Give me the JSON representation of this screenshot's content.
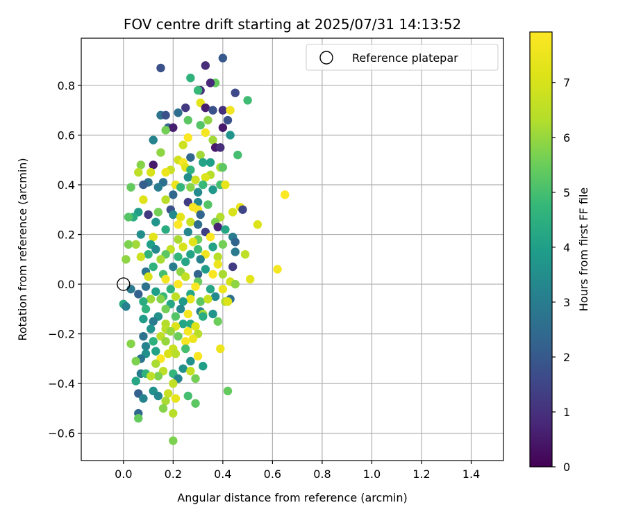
{
  "chart_data": {
    "type": "scatter",
    "title": "FOV centre drift starting at 2025/07/31 14:13:52",
    "xlabel": "Angular distance from reference (arcmin)",
    "ylabel": "Rotation from reference (arcmin)",
    "xlim": [
      -0.17,
      1.53
    ],
    "ylim": [
      -0.71,
      0.99
    ],
    "xticks": [
      0.0,
      0.2,
      0.4,
      0.6,
      0.8,
      1.0,
      1.2,
      1.4
    ],
    "xtick_labels": [
      "0.0",
      "0.2",
      "0.4",
      "0.6",
      "0.8",
      "1.0",
      "1.2",
      "1.4"
    ],
    "yticks": [
      -0.6,
      -0.4,
      -0.2,
      0.0,
      0.2,
      0.4,
      0.6,
      0.8
    ],
    "ytick_labels": [
      "−0.6",
      "−0.4",
      "−0.2",
      "0.0",
      "0.2",
      "0.4",
      "0.6",
      "0.8"
    ],
    "grid": true,
    "legend": {
      "position": "top-right",
      "entries": [
        "Reference platepar"
      ]
    },
    "reference_point": {
      "x": 0.0,
      "y": 0.0,
      "label": "Reference platepar"
    },
    "colorbar": {
      "label": "Hours from first FF file",
      "min": 0,
      "max": 7.92,
      "ticks": [
        0,
        1,
        2,
        3,
        4,
        5,
        6,
        7
      ],
      "tick_labels": [
        "0",
        "1",
        "2",
        "3",
        "4",
        "5",
        "6",
        "7"
      ],
      "colormap": "viridis"
    },
    "points": [
      [
        0.15,
        0.87,
        1.8
      ],
      [
        0.4,
        0.91,
        2.0
      ],
      [
        0.33,
        0.88,
        0.9
      ],
      [
        0.27,
        0.83,
        4.6
      ],
      [
        0.37,
        0.81,
        5.4
      ],
      [
        0.35,
        0.81,
        0.8
      ],
      [
        0.31,
        0.78,
        0.9
      ],
      [
        0.3,
        0.78,
        4.8
      ],
      [
        0.45,
        0.77,
        1.6
      ],
      [
        0.5,
        0.74,
        4.9
      ],
      [
        0.31,
        0.73,
        7.3
      ],
      [
        0.25,
        0.71,
        1.2
      ],
      [
        0.33,
        0.71,
        0.6
      ],
      [
        0.4,
        0.7,
        1.0
      ],
      [
        0.43,
        0.7,
        7.6
      ],
      [
        0.36,
        0.7,
        1.8
      ],
      [
        0.22,
        0.69,
        2.6
      ],
      [
        0.15,
        0.68,
        2.7
      ],
      [
        0.17,
        0.68,
        1.8
      ],
      [
        0.26,
        0.66,
        5.3
      ],
      [
        0.34,
        0.66,
        5.9
      ],
      [
        0.42,
        0.66,
        1.8
      ],
      [
        0.31,
        0.64,
        5.2
      ],
      [
        0.4,
        0.63,
        0.5
      ],
      [
        0.18,
        0.63,
        2.3
      ],
      [
        0.2,
        0.63,
        0.6
      ],
      [
        0.17,
        0.62,
        5.6
      ],
      [
        0.33,
        0.61,
        7.7
      ],
      [
        0.26,
        0.59,
        7.9
      ],
      [
        0.12,
        0.58,
        3.2
      ],
      [
        0.36,
        0.58,
        6.1
      ],
      [
        0.43,
        0.6,
        3.7
      ],
      [
        0.24,
        0.56,
        6.8
      ],
      [
        0.37,
        0.55,
        0.5
      ],
      [
        0.39,
        0.55,
        0.9
      ],
      [
        0.15,
        0.53,
        5.9
      ],
      [
        0.46,
        0.52,
        5.0
      ],
      [
        0.31,
        0.52,
        6.1
      ],
      [
        0.27,
        0.51,
        2.4
      ],
      [
        0.22,
        0.5,
        6.9
      ],
      [
        0.24,
        0.49,
        7.7
      ],
      [
        0.32,
        0.49,
        4.1
      ],
      [
        0.35,
        0.49,
        4.0
      ],
      [
        0.12,
        0.48,
        0.5
      ],
      [
        0.07,
        0.48,
        5.8
      ],
      [
        0.25,
        0.47,
        7.2
      ],
      [
        0.39,
        0.47,
        6.2
      ],
      [
        0.4,
        0.47,
        5.3
      ],
      [
        0.27,
        0.46,
        4.6
      ],
      [
        0.19,
        0.46,
        6.7
      ],
      [
        0.17,
        0.45,
        7.5
      ],
      [
        0.06,
        0.45,
        6.5
      ],
      [
        0.11,
        0.45,
        7.0
      ],
      [
        0.35,
        0.44,
        6.4
      ],
      [
        0.33,
        0.43,
        7.1
      ],
      [
        0.26,
        0.43,
        3.5
      ],
      [
        0.29,
        0.42,
        6.8
      ],
      [
        0.1,
        0.41,
        2.6
      ],
      [
        0.16,
        0.41,
        2.6
      ],
      [
        0.08,
        0.4,
        2.1
      ],
      [
        0.21,
        0.4,
        7.5
      ],
      [
        0.32,
        0.4,
        4.8
      ],
      [
        0.39,
        0.4,
        5.0
      ],
      [
        0.41,
        0.4,
        7.4
      ],
      [
        0.03,
        0.39,
        5.4
      ],
      [
        0.14,
        0.39,
        3.0
      ],
      [
        0.23,
        0.39,
        4.7
      ],
      [
        0.27,
        0.39,
        5.8
      ],
      [
        0.36,
        0.38,
        3.8
      ],
      [
        0.3,
        0.37,
        3.4
      ],
      [
        0.2,
        0.36,
        2.4
      ],
      [
        0.17,
        0.34,
        6.4
      ],
      [
        0.08,
        0.34,
        7.2
      ],
      [
        0.26,
        0.33,
        1.3
      ],
      [
        0.3,
        0.33,
        3.3
      ],
      [
        0.34,
        0.32,
        5.2
      ],
      [
        0.47,
        0.31,
        7.4
      ],
      [
        0.48,
        0.3,
        1.5
      ],
      [
        0.65,
        0.36,
        7.9
      ],
      [
        0.28,
        0.31,
        7.8
      ],
      [
        0.3,
        0.3,
        7.8
      ],
      [
        0.19,
        0.3,
        1.8
      ],
      [
        0.06,
        0.29,
        3.9
      ],
      [
        0.14,
        0.29,
        5.6
      ],
      [
        0.44,
        0.29,
        7.0
      ],
      [
        0.1,
        0.28,
        1.2
      ],
      [
        0.2,
        0.28,
        3.4
      ],
      [
        0.31,
        0.28,
        2.3
      ],
      [
        0.39,
        0.27,
        6.3
      ],
      [
        0.04,
        0.27,
        4.4
      ],
      [
        0.23,
        0.27,
        7.3
      ],
      [
        0.02,
        0.27,
        5.2
      ],
      [
        0.37,
        0.25,
        5.7
      ],
      [
        0.27,
        0.25,
        6.7
      ],
      [
        0.13,
        0.25,
        3.7
      ],
      [
        0.22,
        0.24,
        7.9
      ],
      [
        0.54,
        0.24,
        7.1
      ],
      [
        0.3,
        0.24,
        2.6
      ],
      [
        0.38,
        0.23,
        0.7
      ],
      [
        0.41,
        0.22,
        4.2
      ],
      [
        0.17,
        0.22,
        4.4
      ],
      [
        0.26,
        0.21,
        3.3
      ],
      [
        0.33,
        0.21,
        1.4
      ],
      [
        0.07,
        0.2,
        3.5
      ],
      [
        0.12,
        0.19,
        7.3
      ],
      [
        0.35,
        0.19,
        7.9
      ],
      [
        0.44,
        0.19,
        3.0
      ],
      [
        0.22,
        0.18,
        6.2
      ],
      [
        0.3,
        0.18,
        5.5
      ],
      [
        0.45,
        0.17,
        2.3
      ],
      [
        0.28,
        0.17,
        7.2
      ],
      [
        0.4,
        0.16,
        5.6
      ],
      [
        0.05,
        0.16,
        6.1
      ],
      [
        0.11,
        0.16,
        4.0
      ],
      [
        0.24,
        0.15,
        7.0
      ],
      [
        0.36,
        0.15,
        4.1
      ],
      [
        0.02,
        0.16,
        5.7
      ],
      [
        0.19,
        0.14,
        6.6
      ],
      [
        0.3,
        0.14,
        4.9
      ],
      [
        0.13,
        0.14,
        3.4
      ],
      [
        0.45,
        0.13,
        2.9
      ],
      [
        0.17,
        0.12,
        5.3
      ],
      [
        0.27,
        0.12,
        4.1
      ],
      [
        0.33,
        0.12,
        7.6
      ],
      [
        0.1,
        0.12,
        4.6
      ],
      [
        0.22,
        0.11,
        4.7
      ],
      [
        0.38,
        0.11,
        6.4
      ],
      [
        0.49,
        0.12,
        6.5
      ],
      [
        0.07,
        0.11,
        6.8
      ],
      [
        0.15,
        0.1,
        6.2
      ],
      [
        0.31,
        0.1,
        3.1
      ],
      [
        0.01,
        0.1,
        5.9
      ],
      [
        0.25,
        0.09,
        4.2
      ],
      [
        0.38,
        0.08,
        7.5
      ],
      [
        0.44,
        0.07,
        1.3
      ],
      [
        0.12,
        0.07,
        4.6
      ],
      [
        0.2,
        0.07,
        3.0
      ],
      [
        0.33,
        0.06,
        3.9
      ],
      [
        0.62,
        0.06,
        7.7
      ],
      [
        0.09,
        0.05,
        2.8
      ],
      [
        0.23,
        0.05,
        5.9
      ],
      [
        0.3,
        0.04,
        2.3
      ],
      [
        0.16,
        0.04,
        5.0
      ],
      [
        0.4,
        0.04,
        6.2
      ],
      [
        0.36,
        0.04,
        7.8
      ],
      [
        0.1,
        0.03,
        7.0
      ],
      [
        0.25,
        0.03,
        6.6
      ],
      [
        0.51,
        0.02,
        7.3
      ],
      [
        0.17,
        0.02,
        7.6
      ],
      [
        0.3,
        0.01,
        5.5
      ],
      [
        0.43,
        0.01,
        6.9
      ],
      [
        0.45,
        0.0,
        5.9
      ],
      [
        0.22,
        0.0,
        7.9
      ],
      [
        0.29,
        -0.01,
        7.9
      ],
      [
        0.4,
        -0.02,
        7.5
      ],
      [
        0.09,
        -0.01,
        2.7
      ],
      [
        0.19,
        -0.02,
        4.6
      ],
      [
        0.35,
        -0.02,
        4.2
      ],
      [
        0.03,
        -0.02,
        2.9
      ],
      [
        0.13,
        -0.03,
        4.0
      ],
      [
        0.27,
        -0.04,
        4.2
      ],
      [
        0.06,
        -0.04,
        2.2
      ],
      [
        0.16,
        -0.05,
        4.8
      ],
      [
        0.37,
        -0.05,
        3.4
      ],
      [
        0.21,
        -0.05,
        6.5
      ],
      [
        0.27,
        -0.06,
        7.4
      ],
      [
        0.31,
        -0.07,
        5.3
      ],
      [
        0.11,
        -0.06,
        6.1
      ],
      [
        0.15,
        -0.06,
        5.8
      ],
      [
        0.43,
        -0.06,
        2.6
      ],
      [
        0.34,
        -0.06,
        6.7
      ],
      [
        0.41,
        -0.07,
        6.3
      ],
      [
        0.24,
        -0.07,
        3.8
      ],
      [
        0.08,
        -0.07,
        4.4
      ],
      [
        0.19,
        -0.08,
        4.2
      ],
      [
        0.42,
        -0.07,
        7.1
      ],
      [
        0.0,
        -0.08,
        4.3
      ],
      [
        0.01,
        -0.09,
        3.1
      ],
      [
        0.17,
        -0.1,
        5.6
      ],
      [
        0.23,
        -0.1,
        3.4
      ],
      [
        0.09,
        -0.1,
        4.6
      ],
      [
        0.31,
        -0.11,
        3.2
      ],
      [
        0.36,
        -0.12,
        3.7
      ],
      [
        0.26,
        -0.12,
        7.7
      ],
      [
        0.21,
        -0.13,
        5.2
      ],
      [
        0.14,
        -0.13,
        3.6
      ],
      [
        0.08,
        -0.14,
        3.9
      ],
      [
        0.32,
        -0.12,
        6.1
      ],
      [
        0.32,
        -0.13,
        4.4
      ],
      [
        0.12,
        -0.15,
        3.0
      ],
      [
        0.38,
        -0.15,
        5.5
      ],
      [
        0.27,
        -0.16,
        4.3
      ],
      [
        0.17,
        -0.16,
        6.3
      ],
      [
        0.24,
        -0.16,
        4.2
      ],
      [
        0.21,
        -0.17,
        7.1
      ],
      [
        0.29,
        -0.17,
        7.1
      ],
      [
        0.17,
        -0.18,
        6.4
      ],
      [
        0.11,
        -0.18,
        3.7
      ],
      [
        0.19,
        -0.19,
        6.0
      ],
      [
        0.26,
        -0.19,
        7.7
      ],
      [
        0.3,
        -0.2,
        6.4
      ],
      [
        0.08,
        -0.21,
        2.7
      ],
      [
        0.22,
        -0.21,
        5.5
      ],
      [
        0.15,
        -0.21,
        6.5
      ],
      [
        0.28,
        -0.22,
        7.5
      ],
      [
        0.25,
        -0.23,
        7.8
      ],
      [
        0.12,
        -0.23,
        4.5
      ],
      [
        0.17,
        -0.23,
        6.0
      ],
      [
        0.03,
        -0.24,
        5.8
      ],
      [
        0.09,
        -0.25,
        3.2
      ],
      [
        0.39,
        -0.26,
        7.5
      ],
      [
        0.2,
        -0.26,
        6.7
      ],
      [
        0.25,
        -0.26,
        5.0
      ],
      [
        0.13,
        -0.27,
        4.1
      ],
      [
        0.18,
        -0.28,
        7.0
      ],
      [
        0.09,
        -0.28,
        3.6
      ],
      [
        0.21,
        -0.28,
        6.4
      ],
      [
        0.3,
        -0.29,
        7.8
      ],
      [
        0.07,
        -0.3,
        2.8
      ],
      [
        0.15,
        -0.3,
        7.9
      ],
      [
        0.05,
        -0.31,
        5.7
      ],
      [
        0.27,
        -0.31,
        3.6
      ],
      [
        0.13,
        -0.32,
        6.2
      ],
      [
        0.32,
        -0.33,
        4.0
      ],
      [
        0.24,
        -0.34,
        3.6
      ],
      [
        0.16,
        -0.35,
        6.5
      ],
      [
        0.27,
        -0.35,
        6.6
      ],
      [
        0.07,
        -0.36,
        3.0
      ],
      [
        0.09,
        -0.36,
        4.6
      ],
      [
        0.2,
        -0.36,
        4.7
      ],
      [
        0.14,
        -0.37,
        5.7
      ],
      [
        0.11,
        -0.37,
        6.5
      ],
      [
        0.29,
        -0.38,
        5.6
      ],
      [
        0.22,
        -0.38,
        3.3
      ],
      [
        0.05,
        -0.39,
        4.2
      ],
      [
        0.2,
        -0.4,
        6.6
      ],
      [
        0.12,
        -0.43,
        3.6
      ],
      [
        0.42,
        -0.43,
        5.4
      ],
      [
        0.18,
        -0.44,
        6.7
      ],
      [
        0.26,
        -0.45,
        5.0
      ],
      [
        0.06,
        -0.44,
        2.2
      ],
      [
        0.14,
        -0.45,
        3.3
      ],
      [
        0.08,
        -0.46,
        3.2
      ],
      [
        0.21,
        -0.46,
        7.4
      ],
      [
        0.17,
        -0.47,
        6.2
      ],
      [
        0.29,
        -0.48,
        5.3
      ],
      [
        0.16,
        -0.5,
        5.8
      ],
      [
        0.2,
        -0.52,
        6.4
      ],
      [
        0.06,
        -0.52,
        2.4
      ],
      [
        0.06,
        -0.54,
        5.4
      ],
      [
        0.2,
        -0.63,
        5.7
      ]
    ]
  }
}
